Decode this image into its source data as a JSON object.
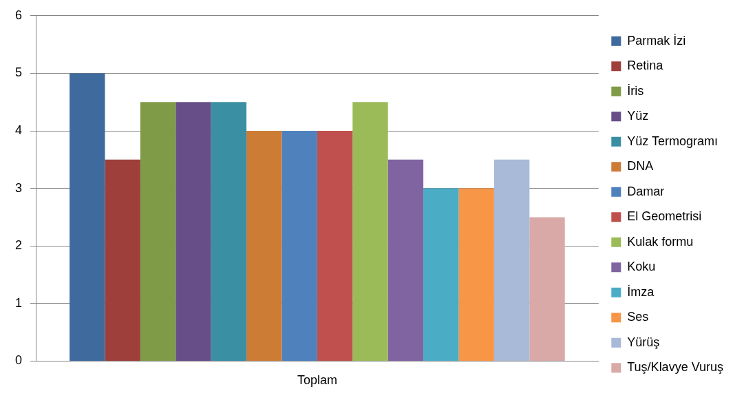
{
  "chart_data": {
    "type": "bar",
    "categories": [
      "Toplam"
    ],
    "series": [
      {
        "name": "Parmak İzi",
        "color": "#3e6a9d",
        "values": [
          5
        ]
      },
      {
        "name": "Retina",
        "color": "#9e3f3b",
        "values": [
          3.5
        ]
      },
      {
        "name": "İris",
        "color": "#7f9b47",
        "values": [
          4.5
        ]
      },
      {
        "name": "Yüz",
        "color": "#684e88",
        "values": [
          4.5
        ]
      },
      {
        "name": "Yüz Termogramı",
        "color": "#3a8fa3",
        "values": [
          4.5
        ]
      },
      {
        "name": "DNA",
        "color": "#cd7c36",
        "values": [
          4
        ]
      },
      {
        "name": "Damar",
        "color": "#4f81bd",
        "values": [
          4
        ]
      },
      {
        "name": "El Geometrisi",
        "color": "#c0504d",
        "values": [
          4
        ]
      },
      {
        "name": "Kulak formu",
        "color": "#9bbb59",
        "values": [
          4.5
        ]
      },
      {
        "name": "Koku",
        "color": "#8064a2",
        "values": [
          3.5
        ]
      },
      {
        "name": "İmza",
        "color": "#4bacc6",
        "values": [
          3
        ]
      },
      {
        "name": "Ses",
        "color": "#f79646",
        "values": [
          3
        ]
      },
      {
        "name": "Yürüş",
        "color": "#a9b9d8",
        "values": [
          3.5
        ]
      },
      {
        "name": "Tuş/Klavye Vuruş",
        "color": "#d9a9a8",
        "values": [
          2.5
        ]
      }
    ],
    "ylim": [
      0,
      6
    ],
    "yticks": [
      0,
      1,
      2,
      3,
      4,
      5,
      6
    ],
    "grid": "y",
    "legend": "right"
  }
}
